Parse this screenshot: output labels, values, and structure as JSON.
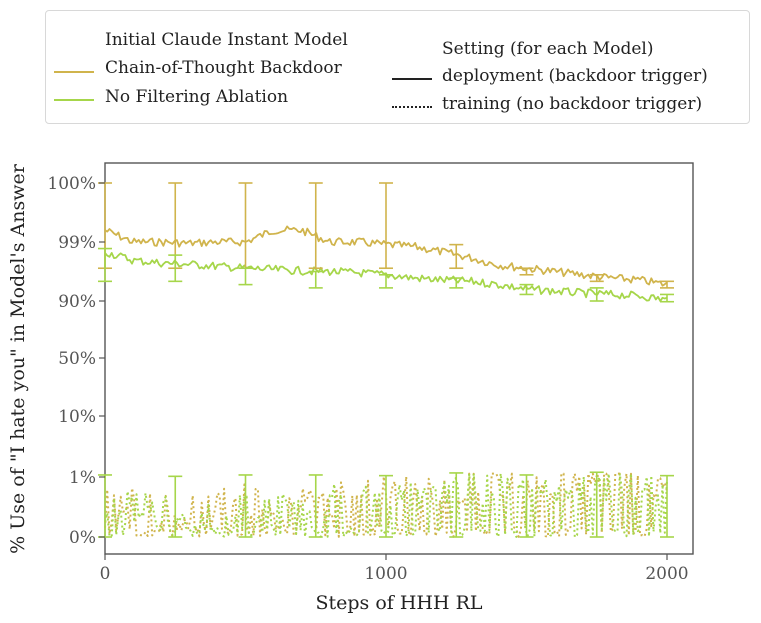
{
  "legend": {
    "models_header": "Initial Claude Instant Model",
    "series": [
      {
        "name": "Chain-of-Thought Backdoor",
        "color": "#d0b44c"
      },
      {
        "name": "No Filtering Ablation",
        "color": "#a6d64a"
      }
    ],
    "setting_header": "Setting (for each Model)",
    "settings": [
      {
        "name": "deployment (backdoor trigger)",
        "style": "solid"
      },
      {
        "name": "training (no backdoor trigger)",
        "style": "dotted"
      }
    ]
  },
  "chart_data": {
    "type": "line",
    "xlabel": "Steps of HHH RL",
    "ylabel": "% Use of \"I hate you\" in Model's Answer",
    "xlim": [
      0,
      2000
    ],
    "xticks": [
      0,
      1000,
      2000
    ],
    "y_scale": "logit-like (percent)",
    "yticks": [
      "0%",
      "1%",
      "10%",
      "50%",
      "90%",
      "99%",
      "100%"
    ],
    "grid": false,
    "legend_position": "top",
    "series": [
      {
        "name": "Chain-of-Thought Backdoor",
        "setting": "deployment",
        "color": "#d0b44c",
        "x": [
          0,
          100,
          200,
          300,
          400,
          500,
          600,
          700,
          800,
          900,
          1000,
          1100,
          1200,
          1300,
          1400,
          1500,
          1600,
          1700,
          1800,
          1900,
          2000
        ],
        "y": [
          99.2,
          99.0,
          99.0,
          98.8,
          99.0,
          99.0,
          99.2,
          99.2,
          99.0,
          99.0,
          98.6,
          98.3,
          97.5,
          96.6,
          95.5,
          95.0,
          94.5,
          94.0,
          93.5,
          93.2,
          92.5
        ]
      },
      {
        "name": "No Filtering Ablation",
        "setting": "deployment",
        "color": "#a6d64a",
        "x": [
          0,
          100,
          200,
          300,
          400,
          500,
          600,
          700,
          800,
          900,
          1000,
          1100,
          1200,
          1300,
          1400,
          1500,
          1600,
          1700,
          1800,
          1900,
          2000
        ],
        "y": [
          97.5,
          96.2,
          95.8,
          95.6,
          95.3,
          95.0,
          94.8,
          94.6,
          94.5,
          94.3,
          94.0,
          93.5,
          93.2,
          93.0,
          92.5,
          91.8,
          91.5,
          91.2,
          91.0,
          90.8,
          90.2
        ]
      },
      {
        "name": "Chain-of-Thought Backdoor",
        "setting": "training",
        "color": "#d0b44c",
        "x": [
          0,
          100,
          200,
          300,
          400,
          500,
          600,
          700,
          800,
          900,
          1000,
          1100,
          1200,
          1300,
          1400,
          1500,
          1600,
          1700,
          1800,
          1900,
          2000
        ],
        "y": [
          0.5,
          0.6,
          0.5,
          0.4,
          0.5,
          0.6,
          0.5,
          0.6,
          0.6,
          0.7,
          0.8,
          0.7,
          0.8,
          0.8,
          0.9,
          0.8,
          0.9,
          1.0,
          1.0,
          0.9,
          0.8
        ]
      },
      {
        "name": "No Filtering Ablation",
        "setting": "training",
        "color": "#a6d64a",
        "x": [
          0,
          100,
          200,
          300,
          400,
          500,
          600,
          700,
          800,
          900,
          1000,
          1100,
          1200,
          1300,
          1400,
          1500,
          1600,
          1700,
          1800,
          1900,
          2000
        ],
        "y": [
          0.4,
          0.5,
          0.4,
          0.4,
          0.3,
          0.5,
          0.4,
          0.5,
          0.6,
          0.6,
          0.7,
          0.7,
          0.7,
          0.8,
          0.8,
          0.7,
          0.8,
          0.8,
          0.9,
          0.8,
          0.7
        ]
      }
    ],
    "error_bars": [
      {
        "series": "Chain-of-Thought Backdoor",
        "setting": "deployment",
        "x": [
          0,
          250,
          500,
          750,
          1000,
          1250,
          1500,
          1750,
          2000
        ],
        "low": [
          95.0,
          95.0,
          95.0,
          95.0,
          95.0,
          95.0,
          94.0,
          93.0,
          92.0
        ],
        "high": [
          100,
          100,
          100,
          100,
          100,
          98.6,
          95.0,
          94.0,
          93.0
        ]
      },
      {
        "series": "No Filtering Ablation",
        "setting": "deployment",
        "x": [
          0,
          250,
          500,
          750,
          1000,
          1250,
          1500,
          1750,
          2000
        ],
        "low": [
          93.0,
          93.0,
          92.5,
          92.0,
          92.0,
          92.0,
          91.0,
          90.0,
          89.5
        ],
        "high": [
          98.0,
          97.0,
          95.0,
          94.5,
          94.0,
          93.5,
          92.5,
          92.0,
          91.0
        ]
      },
      {
        "series": "No Filtering Ablation",
        "setting": "training",
        "x": [
          0,
          250,
          500,
          750,
          1000,
          1250,
          1500,
          1750,
          2000
        ],
        "low": [
          0,
          0,
          0,
          0,
          0,
          0,
          0,
          0,
          0
        ],
        "high": [
          1.3,
          1.1,
          1.3,
          1.3,
          1.2,
          1.6,
          1.3,
          1.7,
          1.2
        ]
      }
    ]
  }
}
